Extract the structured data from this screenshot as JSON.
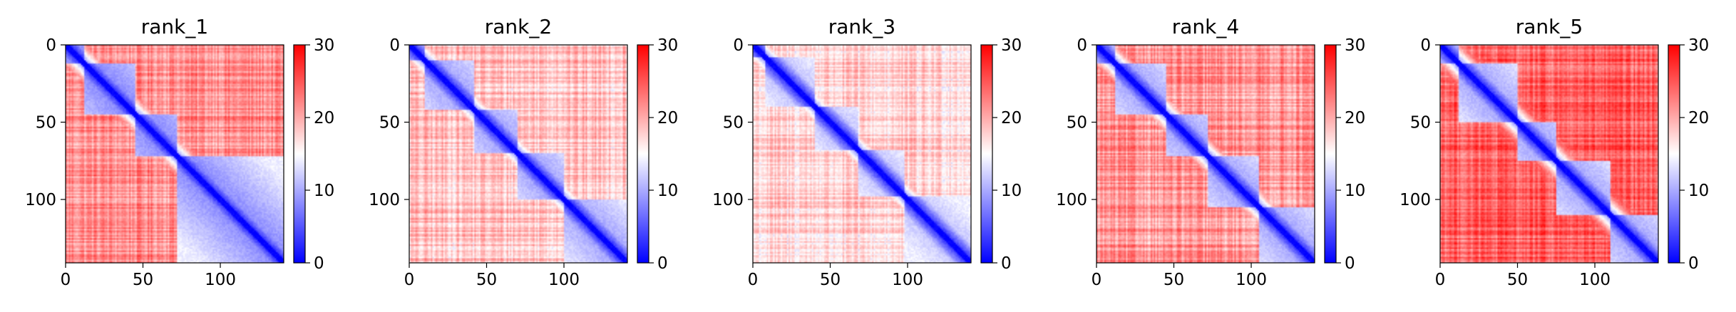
{
  "chart_data": {
    "type": "heatmap",
    "description_note": "",
    "colormap": {
      "low": "#0000ff",
      "mid": "#ffffff",
      "high": "#ff0000",
      "vmin": 0,
      "vmax": 30
    },
    "panels": [
      {
        "title": "rank_1",
        "x_ticks": [
          "0",
          "50",
          "100"
        ],
        "y_ticks": [
          "0",
          "50",
          "100"
        ],
        "colorbar_ticks": [
          "0",
          "10",
          "20",
          "30"
        ],
        "matrix_size": 141,
        "domains": [
          [
            0,
            12
          ],
          [
            12,
            45
          ],
          [
            45,
            72
          ],
          [
            72,
            141
          ]
        ],
        "intra_domain_level": 0.25,
        "background_level": 0.72
      },
      {
        "title": "rank_2",
        "x_ticks": [
          "0",
          "50",
          "100"
        ],
        "y_ticks": [
          "0",
          "50",
          "100"
        ],
        "colorbar_ticks": [
          "0",
          "10",
          "20",
          "30"
        ],
        "matrix_size": 141,
        "domains": [
          [
            0,
            10
          ],
          [
            10,
            42
          ],
          [
            42,
            70
          ],
          [
            70,
            100
          ],
          [
            100,
            141
          ]
        ],
        "intra_domain_level": 0.3,
        "background_level": 0.62
      },
      {
        "title": "rank_3",
        "x_ticks": [
          "0",
          "50",
          "100"
        ],
        "y_ticks": [
          "0",
          "50",
          "100"
        ],
        "colorbar_ticks": [
          "0",
          "10",
          "20",
          "30"
        ],
        "matrix_size": 141,
        "domains": [
          [
            0,
            8
          ],
          [
            8,
            40
          ],
          [
            40,
            68
          ],
          [
            68,
            98
          ],
          [
            98,
            141
          ]
        ],
        "intra_domain_level": 0.35,
        "background_level": 0.58
      },
      {
        "title": "rank_4",
        "x_ticks": [
          "0",
          "50",
          "100"
        ],
        "y_ticks": [
          "0",
          "50",
          "100"
        ],
        "colorbar_ticks": [
          "0",
          "10",
          "20",
          "30"
        ],
        "matrix_size": 141,
        "domains": [
          [
            0,
            12
          ],
          [
            12,
            45
          ],
          [
            45,
            72
          ],
          [
            72,
            105
          ],
          [
            105,
            141
          ]
        ],
        "intra_domain_level": 0.3,
        "background_level": 0.7
      },
      {
        "title": "rank_5",
        "x_ticks": [
          "0",
          "50",
          "100"
        ],
        "y_ticks": [
          "0",
          "50",
          "100"
        ],
        "colorbar_ticks": [
          "0",
          "10",
          "20",
          "30"
        ],
        "matrix_size": 141,
        "domains": [
          [
            0,
            12
          ],
          [
            12,
            50
          ],
          [
            50,
            75
          ],
          [
            75,
            110
          ],
          [
            110,
            141
          ]
        ],
        "intra_domain_level": 0.3,
        "background_level": 0.8
      }
    ]
  }
}
